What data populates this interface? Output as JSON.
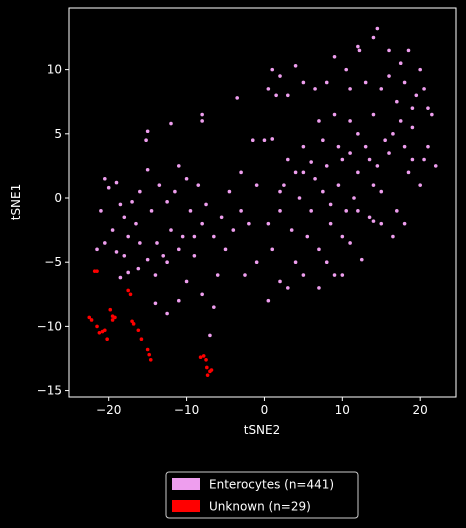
{
  "chart_data": {
    "type": "scatter",
    "xlabel": "tSNE2",
    "ylabel": "tSNE1",
    "xlim": [
      -25.1,
      24.6
    ],
    "ylim": [
      -15.5,
      14.8
    ],
    "xticks": [
      {
        "value": -20,
        "label": "−20"
      },
      {
        "value": -10,
        "label": "−10"
      },
      0,
      10,
      20
    ],
    "yticks": [
      {
        "value": -15,
        "label": "−15"
      },
      {
        "value": -10,
        "label": "−10"
      },
      {
        "value": -5,
        "label": "−5"
      },
      0,
      5,
      10
    ],
    "legend": "bottom",
    "series": [
      {
        "name": "Enterocytes (n=441)",
        "color": "#ee9eee",
        "x": [
          -20.5,
          -20,
          -19,
          -18.5,
          -18,
          -19.5,
          -20.5,
          -19,
          -17.5,
          -16.5,
          -16,
          -15,
          -14.5,
          -13.8,
          -15,
          -16.2,
          -17.5,
          -18.5,
          -14,
          -12.5,
          -12,
          -11.5,
          -11,
          -10,
          -9.5,
          -10.5,
          -9,
          -8,
          -7.5,
          -8.5,
          -6.5,
          -5.5,
          -5,
          -6,
          -8,
          -10,
          -11,
          -12.5,
          -14,
          -15,
          -15.2,
          -12,
          -8,
          -8,
          -3.5,
          -12.5,
          -13.5,
          -17,
          -21,
          -21.5,
          -18,
          -7,
          -6.5,
          -4,
          -3,
          -4.5,
          -9,
          -11,
          -13,
          -16,
          0,
          1,
          -1.5,
          0.5,
          1,
          2,
          2.5,
          3,
          3.5,
          4,
          4.5,
          5,
          5.5,
          6,
          6.5,
          7,
          7.5,
          8,
          8.5,
          9,
          9.5,
          10,
          10.5,
          11,
          11.5,
          12,
          12.5,
          13,
          13.5,
          14,
          14.5,
          15,
          16,
          16.5,
          17,
          17.5,
          18,
          18.5,
          19,
          20,
          20.5,
          21,
          22,
          21.5,
          19.5,
          18,
          17,
          16,
          15,
          14.5,
          14,
          12,
          12.2,
          10.5,
          11,
          13,
          9,
          8,
          6.5,
          5,
          4,
          3,
          2,
          1.5,
          0.5,
          1,
          7,
          9,
          11,
          12,
          14,
          16,
          18.5,
          17.5,
          19,
          20,
          20.5,
          15.5,
          13.5,
          11,
          9.5,
          7.5,
          5,
          4,
          2,
          -1,
          0.5,
          2,
          3,
          5,
          7,
          8,
          10,
          14,
          16.5,
          18,
          -2,
          -1,
          -3,
          -2.5,
          6,
          8.5,
          10,
          12,
          15,
          19,
          21
        ],
        "y": [
          1.5,
          0.8,
          1.2,
          -0.5,
          -1.5,
          -2.5,
          -3.5,
          -4.2,
          -3,
          -2,
          0.5,
          2.2,
          -1,
          -3.5,
          -4.8,
          -5.5,
          -5.8,
          -6.2,
          -6,
          -5,
          -2.5,
          0.5,
          2.5,
          1.5,
          -1,
          -3,
          -4.5,
          -2,
          -0.5,
          1,
          -3,
          -1.5,
          -4,
          -6,
          -7.5,
          -6.5,
          -8,
          -9,
          -8.2,
          5.2,
          4.5,
          5.8,
          6.5,
          6,
          7.8,
          -0.3,
          1,
          -0.3,
          -1,
          -4,
          -4.5,
          -10.7,
          -8.5,
          -2.5,
          -1,
          0.5,
          -3,
          -4,
          -4.5,
          -3.5,
          4.5,
          4.6,
          4.5,
          -2,
          -4,
          -1,
          1,
          3,
          -2.5,
          -5,
          0,
          2,
          -3,
          -1,
          1.5,
          -4,
          0.5,
          2.5,
          -2,
          -6,
          1,
          3,
          -1,
          -3.5,
          0,
          2,
          -4.8,
          4,
          -1.5,
          1,
          2.5,
          -2,
          3.5,
          5,
          -1,
          6,
          4,
          2,
          5.5,
          1,
          3,
          7,
          2.5,
          6.5,
          8,
          9,
          7.5,
          11.5,
          8.5,
          13.2,
          12.5,
          11.8,
          11.5,
          10,
          8.5,
          9,
          11,
          9,
          8.5,
          9,
          10.3,
          8,
          9.5,
          8,
          8.5,
          10,
          6,
          6.5,
          6,
          5,
          6.5,
          9.5,
          11.5,
          10.5,
          7,
          10,
          8.5,
          4.5,
          3,
          3.5,
          4,
          4.5,
          4,
          2,
          0.5,
          -5,
          -8,
          -6.5,
          -7,
          -6,
          -7,
          -5,
          -6,
          -1.8,
          -3,
          -2,
          -2,
          1,
          2,
          -6,
          2.8,
          -0.5,
          -3,
          -1,
          0.5,
          3,
          4
        ]
      },
      {
        "name": "Unknown (n=29)",
        "color": "#ff0000",
        "x": [
          -21.5,
          -21.8,
          -22.5,
          -22.2,
          -21.5,
          -21.2,
          -20.5,
          -20.2,
          -19.8,
          -19.5,
          -19.2,
          -19.5,
          -17.2,
          -17,
          -16.8,
          -15.8,
          -15,
          -14.8,
          -14.6,
          -8.2,
          -7.8,
          -7.5,
          -7.4,
          -7.3,
          -7,
          -6.8,
          -17.5,
          -16.2,
          -20.8
        ],
        "y": [
          -5.7,
          -5.7,
          -9.3,
          -9.5,
          -10,
          -10.5,
          -10.3,
          -11,
          -8.7,
          -9.2,
          -9.3,
          -9.5,
          -7.5,
          -9.6,
          -9.8,
          -11,
          -11.8,
          -12.2,
          -12.6,
          -12.4,
          -12.3,
          -12.6,
          -13.2,
          -13.8,
          -13.5,
          -13.4,
          -7.2,
          -10.3,
          -10.4
        ]
      }
    ]
  }
}
